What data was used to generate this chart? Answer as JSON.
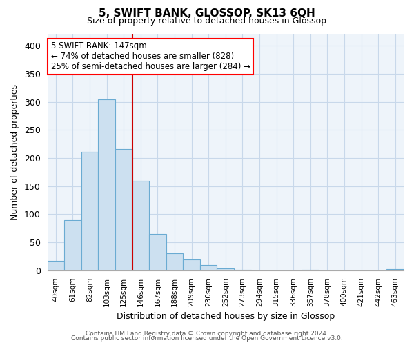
{
  "title": "5, SWIFT BANK, GLOSSOP, SK13 6QH",
  "subtitle": "Size of property relative to detached houses in Glossop",
  "xlabel": "Distribution of detached houses by size in Glossop",
  "ylabel": "Number of detached properties",
  "bar_labels": [
    "40sqm",
    "61sqm",
    "82sqm",
    "103sqm",
    "125sqm",
    "146sqm",
    "167sqm",
    "188sqm",
    "209sqm",
    "230sqm",
    "252sqm",
    "273sqm",
    "294sqm",
    "315sqm",
    "336sqm",
    "357sqm",
    "378sqm",
    "400sqm",
    "421sqm",
    "442sqm",
    "463sqm"
  ],
  "bar_values": [
    17,
    90,
    211,
    304,
    216,
    160,
    65,
    31,
    20,
    9,
    4,
    1,
    0,
    0,
    0,
    1,
    0,
    0,
    0,
    0,
    2
  ],
  "bar_color": "#cce0f0",
  "bar_edge_color": "#6aabd2",
  "vline_color": "#cc0000",
  "ylim": [
    0,
    420
  ],
  "yticks": [
    0,
    50,
    100,
    150,
    200,
    250,
    300,
    350,
    400
  ],
  "annotation_title": "5 SWIFT BANK: 147sqm",
  "annotation_line1": "← 74% of detached houses are smaller (828)",
  "annotation_line2": "25% of semi-detached houses are larger (284) →",
  "footer_line1": "Contains HM Land Registry data © Crown copyright and database right 2024.",
  "footer_line2": "Contains public sector information licensed under the Open Government Licence v3.0.",
  "background_color": "#ffffff",
  "grid_color": "#c8d8ea",
  "plot_bg_color": "#eef4fa"
}
